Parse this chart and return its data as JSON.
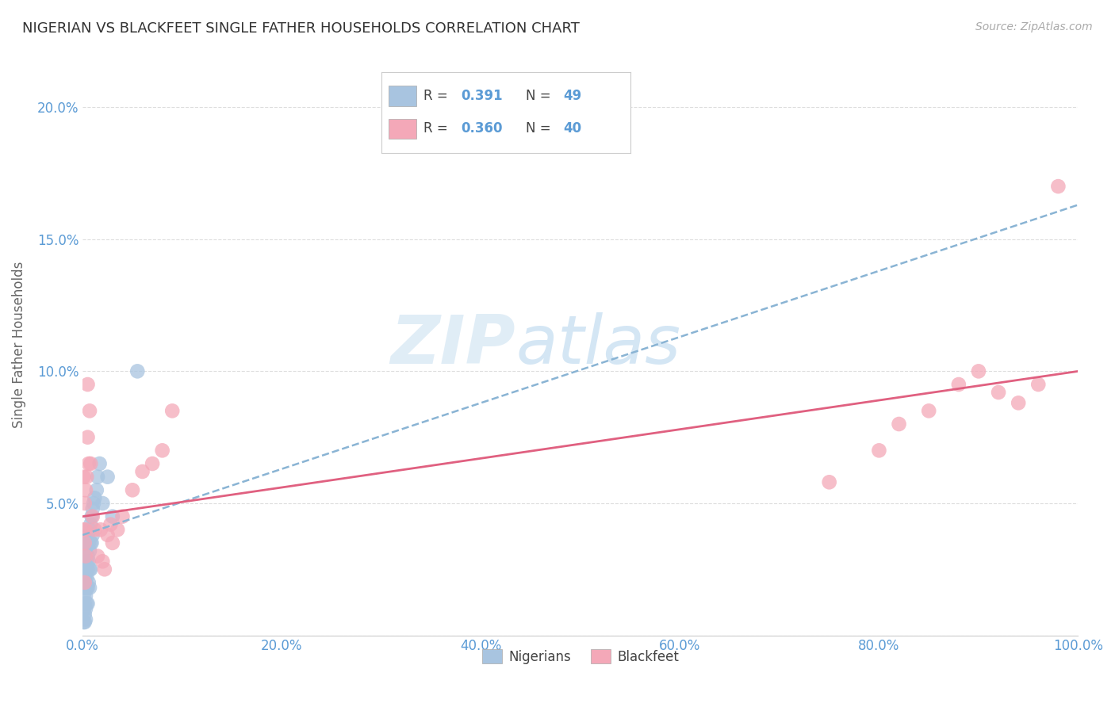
{
  "title": "NIGERIAN VS BLACKFEET SINGLE FATHER HOUSEHOLDS CORRELATION CHART",
  "source": "Source: ZipAtlas.com",
  "ylabel": "Single Father Households",
  "xlim": [
    0,
    1.0
  ],
  "ylim": [
    0,
    0.22
  ],
  "xticks": [
    0.0,
    0.2,
    0.4,
    0.6,
    0.8,
    1.0
  ],
  "xticklabels": [
    "0.0%",
    "20.0%",
    "40.0%",
    "60.0%",
    "80.0%",
    "100.0%"
  ],
  "yticks": [
    0.0,
    0.05,
    0.1,
    0.15,
    0.2
  ],
  "yticklabels": [
    "",
    "5.0%",
    "10.0%",
    "15.0%",
    "20.0%"
  ],
  "nigerian_R": 0.391,
  "nigerian_N": 49,
  "blackfeet_R": 0.36,
  "blackfeet_N": 40,
  "nigerian_color": "#a8c4e0",
  "blackfeet_color": "#f4a8b8",
  "nigerian_line_color": "#6699cc",
  "nigerian_line_color_dashed": "#8ab4d4",
  "blackfeet_line_color": "#e06080",
  "nigerian_x": [
    0.001,
    0.001,
    0.001,
    0.001,
    0.002,
    0.002,
    0.002,
    0.002,
    0.002,
    0.002,
    0.003,
    0.003,
    0.003,
    0.003,
    0.003,
    0.003,
    0.004,
    0.004,
    0.004,
    0.004,
    0.004,
    0.005,
    0.005,
    0.005,
    0.005,
    0.005,
    0.006,
    0.006,
    0.006,
    0.007,
    0.007,
    0.007,
    0.007,
    0.008,
    0.008,
    0.008,
    0.009,
    0.009,
    0.01,
    0.01,
    0.011,
    0.012,
    0.014,
    0.015,
    0.017,
    0.02,
    0.025,
    0.03,
    0.055
  ],
  "nigerian_y": [
    0.02,
    0.015,
    0.01,
    0.005,
    0.028,
    0.022,
    0.018,
    0.012,
    0.008,
    0.005,
    0.032,
    0.025,
    0.02,
    0.015,
    0.01,
    0.006,
    0.035,
    0.028,
    0.022,
    0.018,
    0.012,
    0.038,
    0.03,
    0.025,
    0.018,
    0.012,
    0.035,
    0.028,
    0.02,
    0.04,
    0.032,
    0.025,
    0.018,
    0.042,
    0.035,
    0.025,
    0.045,
    0.035,
    0.048,
    0.038,
    0.05,
    0.052,
    0.055,
    0.06,
    0.065,
    0.05,
    0.06,
    0.045,
    0.1
  ],
  "blackfeet_x": [
    0.001,
    0.001,
    0.002,
    0.002,
    0.002,
    0.003,
    0.003,
    0.003,
    0.004,
    0.005,
    0.005,
    0.006,
    0.007,
    0.008,
    0.01,
    0.012,
    0.015,
    0.018,
    0.02,
    0.022,
    0.025,
    0.028,
    0.03,
    0.035,
    0.04,
    0.05,
    0.06,
    0.07,
    0.08,
    0.09,
    0.75,
    0.8,
    0.82,
    0.85,
    0.88,
    0.9,
    0.92,
    0.94,
    0.96,
    0.98
  ],
  "blackfeet_y": [
    0.06,
    0.04,
    0.05,
    0.035,
    0.02,
    0.055,
    0.04,
    0.03,
    0.06,
    0.095,
    0.075,
    0.065,
    0.085,
    0.065,
    0.045,
    0.04,
    0.03,
    0.04,
    0.028,
    0.025,
    0.038,
    0.042,
    0.035,
    0.04,
    0.045,
    0.055,
    0.062,
    0.065,
    0.07,
    0.085,
    0.058,
    0.07,
    0.08,
    0.085,
    0.095,
    0.1,
    0.092,
    0.088,
    0.095,
    0.17
  ],
  "nig_line_x0": 0.0,
  "nig_line_y0": 0.038,
  "nig_line_x1": 1.0,
  "nig_line_y1": 0.163,
  "blk_line_x0": 0.0,
  "blk_line_y0": 0.045,
  "blk_line_x1": 1.0,
  "blk_line_y1": 0.1,
  "watermark_zip": "ZIP",
  "watermark_atlas": "atlas",
  "background_color": "#ffffff",
  "grid_color": "#dddddd",
  "tick_color": "#5b9bd5",
  "ylabel_color": "#666666",
  "title_color": "#333333",
  "source_color": "#aaaaaa"
}
